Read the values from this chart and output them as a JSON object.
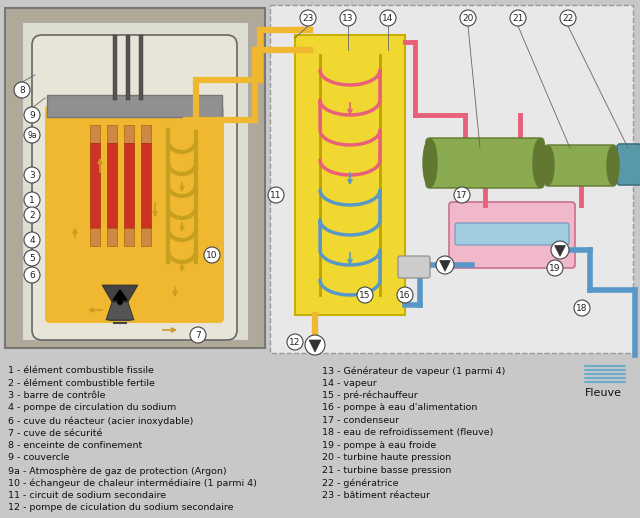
{
  "bg_color": "#c8c8c8",
  "concrete_color": "#b0a898",
  "concrete_border": "#888880",
  "vessel_inner_color": "#e8e5d8",
  "sodium_color": "#f0b830",
  "sodium_dark": "#d09820",
  "lid_color": "#909090",
  "fuel_fissile_color": "#cc3322",
  "fuel_fertile_color": "#cc8844",
  "ihx_pipe_color": "#c8a020",
  "sec_box_color": "#f0d830",
  "sec_box_border": "#c8b000",
  "pink_color": "#e8607a",
  "blue_color": "#5898c8",
  "blue_dark": "#4080b0",
  "green_turbine": "#8aaa50",
  "green_turbine_dark": "#607830",
  "teal_gen": "#5898a8",
  "teal_gen_dark": "#407080",
  "pink_cond": "#f0b8c8",
  "pink_cond_border": "#c87090",
  "river_blue": "#6aaccc",
  "right_panel_bg": "#e8e8e8",
  "label_bg": "white",
  "label_border": "#444444",
  "legend_left": [
    "1 - élément combustible fissile",
    "2 - élément combustible fertile",
    "3 - barre de contrôle",
    "4 - pompe de circulation du sodium",
    "6 - cuve du réacteur (acier inoxydable)",
    "7 - cuve de sécurité",
    "8 - enceinte de confinement",
    "9 - couvercle",
    "9a - Atmosphère de gaz de protection (Argon)",
    "10 - échangeur de chaleur intermédiaire (1 parmi 4)",
    "11 - circuit de sodium secondaire",
    "12 - pompe de ciculation du sodium secondaire"
  ],
  "legend_right": [
    "13 - Générateur de vapeur (1 parmi 4)",
    "14 - vapeur",
    "15 - pré-réchauffeur",
    "16 - pompe à eau d'alimentation",
    "17 - condenseur",
    "18 - eau de refroidissement (fleuve)",
    "19 - pompe à eau froide",
    "20 - turbine haute pression",
    "21 - turbine basse pression",
    "22 - génératrice",
    "23 - bâtiment réacteur"
  ],
  "fleuve_label": "Fleuve"
}
